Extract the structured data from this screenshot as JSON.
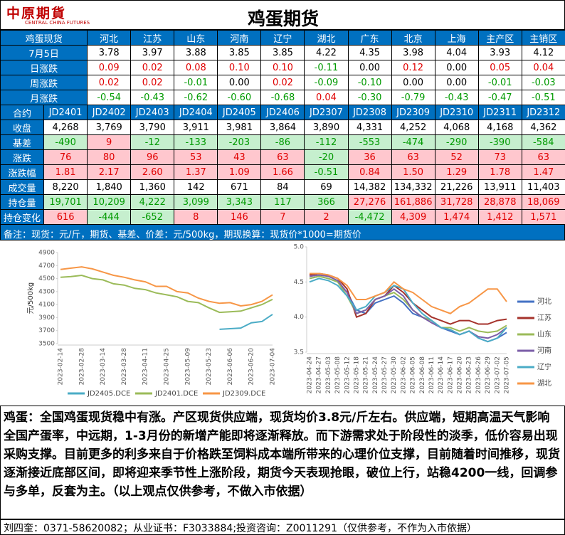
{
  "header": {
    "logo_cn": "中原期貨",
    "logo_en": "CENTRAL CHINA FUTURES",
    "title": "鸡蛋期货"
  },
  "spot_table": {
    "header": [
      "鸡蛋现货",
      "河北",
      "江苏",
      "山东",
      "河南",
      "辽宁",
      "湖北",
      "广东",
      "北京",
      "上海",
      "主产区",
      "主销区"
    ],
    "rows": [
      {
        "label": "7月5日",
        "cells": [
          "3.78",
          "3.97",
          "3.88",
          "3.85",
          "3.85",
          "4.22",
          "4.35",
          "3.98",
          "4.04",
          "3.93",
          "4.12"
        ]
      },
      {
        "label": "日涨跌",
        "cells": [
          "0.09",
          "0.02",
          "0.08",
          "0.10",
          "0.10",
          "-0.11",
          "0.00",
          "0.12",
          "0.00",
          "0.05",
          "0.04"
        ]
      },
      {
        "label": "周涨跌",
        "cells": [
          "0.02",
          "0.02",
          "-0.01",
          "0.00",
          "0.02",
          "-0.09",
          "-0.10",
          "0.00",
          "0.00",
          "-0.01",
          "-0.03"
        ]
      },
      {
        "label": "月涨跌",
        "cells": [
          "-0.54",
          "-0.43",
          "-0.62",
          "-0.60",
          "-0.68",
          "0.04",
          "-0.30",
          "-0.79",
          "-0.43",
          "-0.47",
          "-0.51"
        ]
      }
    ]
  },
  "futures_table": {
    "rows": [
      {
        "label": "合约",
        "cells": [
          "JD2401",
          "JD2402",
          "JD2403",
          "JD2404",
          "JD2405",
          "JD2406",
          "JD2307",
          "JD2308",
          "JD2309",
          "JD2310",
          "JD2311",
          "JD2312"
        ]
      },
      {
        "label": "收盘",
        "cells": [
          "4,268",
          "3,769",
          "3,790",
          "3,911",
          "3,981",
          "3,864",
          "3,890",
          "4,331",
          "4,252",
          "4,068",
          "4,168",
          "4,362"
        ]
      },
      {
        "label": "基差",
        "cells": [
          "-490",
          "9",
          "-12",
          "-133",
          "-203",
          "-86",
          "-112",
          "-553",
          "-474",
          "-290",
          "-390",
          "-584"
        ]
      },
      {
        "label": "涨跌",
        "cells": [
          "76",
          "80",
          "96",
          "53",
          "43",
          "63",
          "-20",
          "36",
          "63",
          "52",
          "73",
          "63"
        ]
      },
      {
        "label": "涨跌幅",
        "cells": [
          "1.81",
          "2.17",
          "2.60",
          "1.37",
          "1.09",
          "1.66",
          "-0.51",
          "0.84",
          "1.50",
          "1.29",
          "1.78",
          "1.47"
        ]
      },
      {
        "label": "成交量",
        "cells": [
          "8,220",
          "1,840",
          "1,360",
          "142",
          "671",
          "84",
          "69",
          "14,382",
          "134,332",
          "21,226",
          "13,911",
          "11,403"
        ]
      },
      {
        "label": "持仓量",
        "cells": [
          "19,701",
          "10,209",
          "4,222",
          "3,099",
          "3,343",
          "117",
          "366",
          "27,276",
          "161,886",
          "31,728",
          "28,878",
          "18,069"
        ]
      },
      {
        "label": "持仓变化",
        "cells": [
          "616",
          "-444",
          "-652",
          "8",
          "146",
          "7",
          "2",
          "-4,472",
          "4,309",
          "1,474",
          "1,412",
          "1,571"
        ]
      }
    ]
  },
  "note": "备注：现货：元/斤，期货、基差、价差：元/500kg，期现换算：现货价*1000=期货价",
  "chart_data": [
    {
      "type": "line",
      "y_label": "元/500kg",
      "legend": "bottom",
      "categories": [
        "2023-02-14",
        null,
        "2023-02-28",
        null,
        "2023-03-14",
        null,
        "2023-03-28",
        null,
        "2023-04-11",
        null,
        "2023-04-25",
        null,
        "2023-05-09",
        null,
        "2023-05-23",
        null,
        "2023-06-06",
        null,
        "2023-06-20",
        null,
        "2023-07-04"
      ],
      "ylim": [
        3500,
        4900
      ],
      "yticks": [
        3500,
        3700,
        3900,
        4100,
        4300,
        4500,
        4700,
        4900
      ],
      "series": [
        {
          "name": "JD2405.DCE",
          "color": "#4bacc6",
          "values": [
            null,
            null,
            null,
            null,
            null,
            null,
            null,
            null,
            null,
            null,
            null,
            null,
            null,
            null,
            null,
            3720,
            3730,
            3740,
            3820,
            3840,
            3950
          ]
        },
        {
          "name": "JD2401.DCE",
          "color": "#9bbb59",
          "values": [
            4520,
            4530,
            4550,
            4500,
            4480,
            4420,
            4400,
            4350,
            4330,
            4280,
            4250,
            4220,
            4150,
            4130,
            4050,
            3980,
            3990,
            4000,
            4050,
            4100,
            4180
          ]
        },
        {
          "name": "JD2309.DCE",
          "color": "#f79646",
          "values": [
            4640,
            4660,
            4680,
            4650,
            4600,
            4550,
            4520,
            4480,
            4450,
            4380,
            4380,
            4300,
            4280,
            4200,
            4150,
            4120,
            4130,
            4080,
            4100,
            4150,
            4250
          ]
        }
      ]
    },
    {
      "type": "line",
      "legend": "right",
      "categories": [
        "2023-04-24",
        "2023-04-27",
        "2023-05-03",
        "2023-05-08",
        "2023-05-12",
        "2023-05-18",
        "2023-05-21",
        "2023-05-24",
        "2023-05-27",
        "2023-05-30",
        "2023-06-02",
        "2023-06-05",
        "2023-06-08",
        "2023-06-11",
        "2023-06-14",
        "2023-06-17",
        "2023-06-20",
        "2023-06-23",
        "2023-06-26",
        "2023-06-29",
        "2023-07-02",
        "2023-07-05"
      ],
      "ylim": [
        3.5,
        5.0
      ],
      "yticks": [
        3.5,
        {
          "value": 4.0,
          "label": "4.0"
        },
        4.5,
        {
          "value": 5.0,
          "label": "5.0"
        }
      ],
      "series": [
        {
          "name": "河北",
          "color": "#4472c4",
          "values": [
            4.55,
            4.58,
            4.55,
            4.5,
            4.35,
            4.1,
            4.05,
            4.2,
            4.25,
            4.3,
            4.2,
            4.05,
            4.0,
            3.95,
            3.85,
            3.8,
            3.75,
            3.8,
            3.7,
            3.65,
            3.7,
            3.78
          ]
        },
        {
          "name": "江苏",
          "color": "#a5322b",
          "values": [
            4.6,
            4.62,
            4.6,
            4.55,
            4.4,
            4.0,
            4.05,
            4.25,
            4.3,
            4.45,
            4.35,
            4.2,
            4.1,
            4.0,
            3.95,
            3.9,
            3.95,
            3.95,
            3.9,
            3.9,
            3.95,
            3.97
          ]
        },
        {
          "name": "山东",
          "color": "#9bbb59",
          "values": [
            4.55,
            4.58,
            4.55,
            4.5,
            4.3,
            4.05,
            4.1,
            4.25,
            4.3,
            4.35,
            4.25,
            4.1,
            4.0,
            3.95,
            3.85,
            3.85,
            3.8,
            3.85,
            3.8,
            3.78,
            3.8,
            3.88
          ]
        },
        {
          "name": "河南",
          "color": "#7b5ea7",
          "values": [
            4.58,
            4.6,
            4.58,
            4.52,
            4.35,
            4.05,
            4.1,
            4.25,
            4.3,
            4.4,
            4.3,
            4.1,
            4.0,
            3.92,
            3.85,
            3.82,
            3.75,
            3.8,
            3.72,
            3.7,
            3.75,
            3.85
          ]
        },
        {
          "name": "辽宁",
          "color": "#4bacc6",
          "values": [
            4.5,
            4.55,
            4.52,
            4.45,
            4.3,
            4.1,
            4.15,
            4.3,
            4.35,
            4.45,
            4.4,
            4.2,
            4.05,
            3.95,
            3.85,
            3.82,
            3.75,
            3.8,
            3.7,
            3.65,
            3.7,
            3.85
          ]
        },
        {
          "name": "湖北",
          "color": "#f79646",
          "values": [
            4.62,
            4.62,
            4.6,
            4.55,
            4.45,
            4.25,
            4.25,
            4.3,
            4.35,
            4.5,
            4.4,
            4.35,
            4.25,
            4.15,
            4.1,
            4.05,
            4.15,
            4.2,
            4.3,
            4.4,
            4.4,
            4.22
          ]
        }
      ]
    }
  ],
  "commentary": "鸡蛋：全国鸡蛋现货稳中有涨。产区现货供应端，现货均价3.8元/斤左右。供应端，短期高温天气影响全国产蛋率，中远期，1-3月份的新增产能即将逐渐释放。而下游需求处于阶段性的淡季，低价容易出现采购支撑。目前更多的利多来自于价格跌至饲料成本端所带来的心理价位支撑，目前随着时间推移，现货逐渐接近底部区间，即将迎来季节性上涨阶段，期货今天表现抢眼，破位上行，站稳4200一线，回调参与多单，反套为主。（以上观点仅供参考，不做入市依据）",
  "footer": "刘四奎：0371-58620082；从业证书：F3033884;投资咨询：Z0011291（仅供参考，不作为入市依据）"
}
